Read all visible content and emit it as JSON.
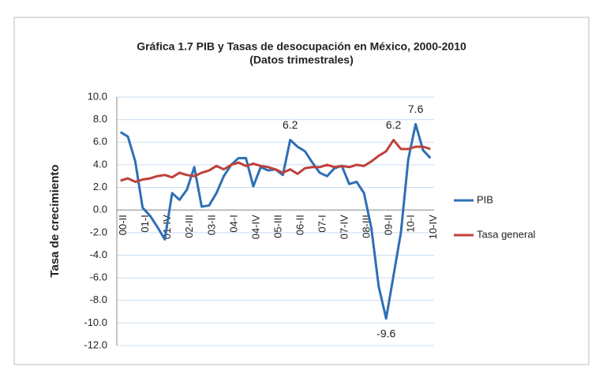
{
  "chart_data": {
    "type": "line",
    "title": "Gráfica 1.7  PIB y Tasas de desocupación en México, 2000-2010",
    "subtitle": "(Datos trimestrales)",
    "y_label": "Tasa de crecimiento",
    "categories": [
      "00-II",
      null,
      null,
      "01-I",
      null,
      null,
      "01-IV",
      null,
      null,
      "02-III",
      null,
      null,
      "03-II",
      null,
      null,
      "04-I",
      null,
      null,
      "04-IV",
      null,
      null,
      "05-III",
      null,
      null,
      "06-II",
      null,
      null,
      "07-I",
      null,
      null,
      "07-IV",
      null,
      null,
      "08-III",
      null,
      null,
      "09-II",
      null,
      null,
      "10-I",
      null,
      null,
      "10-IV"
    ],
    "series": [
      {
        "name": "PIB",
        "color": "#2e6fb5",
        "values": [
          6.9,
          6.5,
          4.3,
          0.2,
          -0.5,
          -1.5,
          -2.6,
          1.5,
          0.9,
          1.8,
          3.8,
          0.3,
          0.4,
          1.5,
          3.0,
          4.0,
          4.6,
          4.6,
          2.1,
          3.8,
          3.5,
          3.6,
          3.1,
          6.2,
          5.6,
          5.2,
          4.2,
          3.3,
          3.0,
          3.7,
          3.9,
          2.3,
          2.5,
          1.5,
          -1.6,
          -6.8,
          -9.6,
          -5.8,
          -2.0,
          4.5,
          7.6,
          5.3,
          4.6
        ],
        "value_labels": [
          null,
          null,
          null,
          null,
          null,
          null,
          null,
          null,
          null,
          null,
          null,
          null,
          null,
          null,
          null,
          null,
          null,
          null,
          null,
          null,
          null,
          null,
          null,
          "6.2",
          null,
          null,
          null,
          null,
          null,
          null,
          null,
          null,
          null,
          null,
          null,
          null,
          "-9.6",
          null,
          null,
          null,
          "7.6",
          null,
          null
        ]
      },
      {
        "name": "Tasa general",
        "color": "#c0403a",
        "values": [
          2.6,
          2.8,
          2.5,
          2.7,
          2.8,
          3.0,
          3.1,
          2.9,
          3.3,
          3.1,
          3.0,
          3.3,
          3.5,
          3.9,
          3.6,
          4.0,
          4.2,
          3.9,
          4.1,
          3.9,
          3.8,
          3.6,
          3.3,
          3.6,
          3.2,
          3.7,
          3.8,
          3.8,
          4.0,
          3.8,
          3.9,
          3.8,
          4.0,
          3.9,
          4.3,
          4.8,
          5.2,
          6.2,
          5.4,
          5.4,
          5.6,
          5.6,
          5.4
        ],
        "value_labels": [
          null,
          null,
          null,
          null,
          null,
          null,
          null,
          null,
          null,
          null,
          null,
          null,
          null,
          null,
          null,
          null,
          null,
          null,
          null,
          null,
          null,
          null,
          null,
          null,
          null,
          null,
          null,
          null,
          null,
          null,
          null,
          null,
          null,
          null,
          null,
          null,
          null,
          "6.2",
          null,
          null,
          null,
          null,
          null
        ]
      }
    ],
    "ylim": [
      -12,
      10
    ],
    "yticks": [
      {
        "value": -12,
        "label": "-12.0"
      },
      {
        "value": -10,
        "label": "-10.0"
      },
      {
        "value": -8,
        "label": "-8.0"
      },
      {
        "value": -6,
        "label": "-6.0"
      },
      {
        "value": -4,
        "label": "-4.0"
      },
      {
        "value": -2,
        "label": "-2.0"
      },
      {
        "value": 0,
        "label": "0.0"
      },
      {
        "value": 2,
        "label": "2.0"
      },
      {
        "value": 4,
        "label": "4.0"
      },
      {
        "value": 6,
        "label": "6.0"
      },
      {
        "value": 8,
        "label": "8.0"
      },
      {
        "value": 10,
        "label": "10.0"
      }
    ],
    "grid": true,
    "legend": "right"
  }
}
